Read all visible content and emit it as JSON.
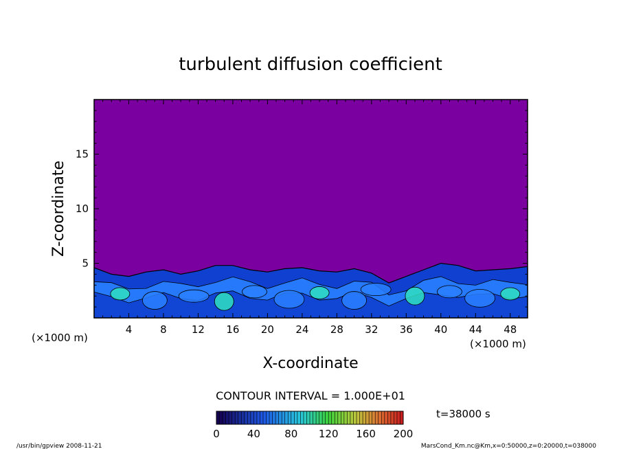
{
  "chart_data": {
    "type": "heatmap",
    "title": "turbulent diffusion coefficient",
    "xlabel": "X-coordinate",
    "ylabel": "Z-coordinate",
    "x_unit": "(×1000 m)",
    "z_unit": "(×1000 m)",
    "xlim": [
      0,
      50
    ],
    "ylim": [
      0,
      20
    ],
    "x_ticks": [
      4,
      8,
      12,
      16,
      20,
      24,
      28,
      32,
      36,
      40,
      44,
      48
    ],
    "y_ticks": [
      5,
      10,
      15
    ],
    "contour_interval_label": "CONTOUR INTERVAL = 1.000E+01",
    "time_label": "t=38000 s",
    "colorbar": {
      "min": 0,
      "max": 200,
      "ticks": [
        0,
        40,
        80,
        120,
        160,
        200
      ]
    },
    "background_value": 0,
    "turbulent_layer_top": [
      [
        0,
        4.6
      ],
      [
        2,
        4.0
      ],
      [
        4,
        3.8
      ],
      [
        6,
        4.2
      ],
      [
        8,
        4.4
      ],
      [
        10,
        4.0
      ],
      [
        12,
        4.3
      ],
      [
        14,
        4.8
      ],
      [
        16,
        4.8
      ],
      [
        18,
        4.4
      ],
      [
        20,
        4.2
      ],
      [
        22,
        4.5
      ],
      [
        24,
        4.6
      ],
      [
        26,
        4.3
      ],
      [
        28,
        4.2
      ],
      [
        30,
        4.5
      ],
      [
        32,
        4.1
      ],
      [
        34,
        3.2
      ],
      [
        36,
        3.8
      ],
      [
        38,
        4.4
      ],
      [
        40,
        5.0
      ],
      [
        42,
        4.8
      ],
      [
        44,
        4.3
      ],
      [
        46,
        4.4
      ],
      [
        48,
        4.5
      ],
      [
        50,
        4.7
      ]
    ]
  },
  "footer": {
    "left": "/usr/bin/gpview   2008-11-21",
    "right": "MarsCond_Km.nc@Km,x=0:50000,z=0:20000,t=038000"
  },
  "colors": {
    "background": "#7a00a0",
    "low": "#1040d0",
    "mid": "#2a80ff",
    "high": "#30e0c0"
  }
}
